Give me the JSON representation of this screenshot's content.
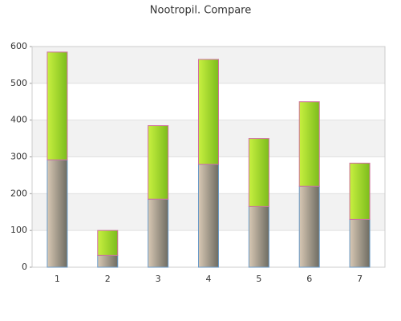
{
  "chart_data": {
    "type": "stacked_bar",
    "title": "Nootropil. Compare",
    "categories": [
      "1",
      "2",
      "3",
      "4",
      "5",
      "6",
      "7"
    ],
    "series": [
      {
        "color": "#d8c8b4",
        "values": [
          292,
          32,
          185,
          280,
          165,
          220,
          130
        ]
      },
      {
        "color": "#c8f040",
        "values": [
          293,
          68,
          200,
          285,
          185,
          230,
          153
        ]
      }
    ],
    "ylim": [
      0,
      600
    ],
    "yticks": [
      0,
      100,
      200,
      300,
      400,
      500,
      600
    ],
    "grid": true
  }
}
